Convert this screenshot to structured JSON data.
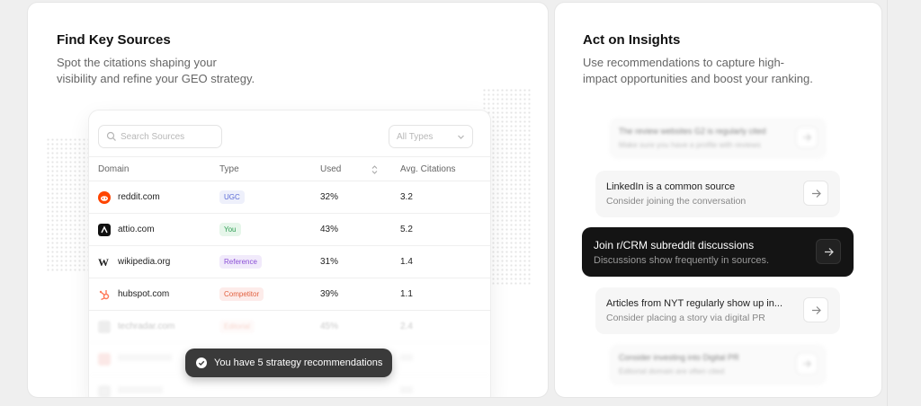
{
  "left_panel": {
    "title": "Find Key Sources",
    "desc_line1": "Spot the citations shaping your",
    "desc_line2": "visibility and refine your GEO strategy."
  },
  "right_panel": {
    "title": "Act on Insights",
    "desc_line1": "Use recommendations to capture high-",
    "desc_line2": "impact opportunities and boost your ranking."
  },
  "table": {
    "search_placeholder": "Search Sources",
    "filter_value": "All Types",
    "headers": {
      "domain": "Domain",
      "type": "Type",
      "used": "Used",
      "avg": "Avg. Citations"
    },
    "rows": [
      {
        "domain": "reddit.com",
        "type": "UGC",
        "used": "32%",
        "avg": "3.2",
        "badge_bg": "#eef0fb",
        "badge_fg": "#5b6bd6",
        "logo": "#ff4500"
      },
      {
        "domain": "attio.com",
        "type": "You",
        "used": "43%",
        "avg": "5.2",
        "badge_bg": "#e6f6ea",
        "badge_fg": "#2f9e55",
        "logo": "#111111"
      },
      {
        "domain": "wikipedia.org",
        "type": "Reference",
        "used": "31%",
        "avg": "1.4",
        "badge_bg": "#f1eafb",
        "badge_fg": "#8a4fd6",
        "logo": "#ffffff"
      },
      {
        "domain": "hubspot.com",
        "type": "Competitor",
        "used": "39%",
        "avg": "1.1",
        "badge_bg": "#fdecea",
        "badge_fg": "#e2603f",
        "logo": "#ff7a59"
      },
      {
        "domain": "techradar.com",
        "type": "Editorial",
        "used": "45%",
        "avg": "2.4",
        "badge_bg": "#fdecea",
        "badge_fg": "#e2603f",
        "logo": "#bbbbbb"
      }
    ]
  },
  "toast": {
    "text": "You have 5 strategy recommendations"
  },
  "recommendations": [
    {
      "title": "The review websites G2 is regularly cited",
      "sub": "Make sure you have a profile with reviews"
    },
    {
      "title": "LinkedIn is a common source",
      "sub": "Consider joining the conversation"
    },
    {
      "title": "Join r/CRM subreddit discussions",
      "sub": "Discussions show frequently in sources."
    },
    {
      "title": "Articles from NYT regularly show up in...",
      "sub": "Consider placing a story via digital PR"
    },
    {
      "title": "Consider investing into Digital PR",
      "sub": "Editorial domain are often cited"
    }
  ]
}
